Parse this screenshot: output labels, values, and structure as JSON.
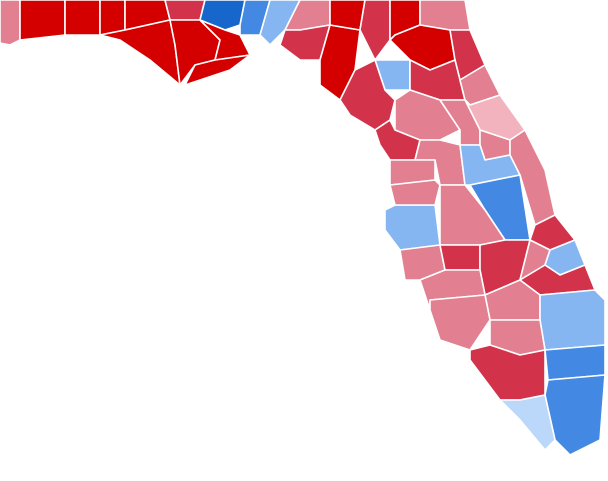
{
  "map": {
    "palette": {
      "dark_red": "#d40000",
      "medium_red": "#d2334a",
      "light_red": "#e27f90",
      "pink": "#f2b3be",
      "dark_blue": "#1666cb",
      "medium_blue": "#4389e3",
      "light_blue": "#86b6f2",
      "pale_blue": "#bbd7f9"
    },
    "counties": [
      "light_red",
      "dark_red",
      "dark_red",
      "dark_red",
      "dark_red",
      "dark_red",
      "medium_red",
      "dark_red",
      "dark_blue",
      "medium_blue",
      "light_blue",
      "dark_red",
      "dark_red",
      "light_red",
      "medium_red",
      "dark_red",
      "dark_red",
      "medium_red",
      "dark_red",
      "light_red",
      "dark_red",
      "medium_red",
      "light_blue",
      "medium_red",
      "medium_red",
      "light_red",
      "light_red",
      "pink",
      "light_red",
      "medium_red",
      "light_red",
      "light_red",
      "light_blue",
      "light_red",
      "light_red",
      "medium_blue",
      "light_blue",
      "light_red",
      "light_red",
      "medium_red",
      "light_red",
      "medium_red",
      "medium_red",
      "light_red",
      "light_blue",
      "medium_red",
      "light_red",
      "light_red",
      "light_blue",
      "light_red",
      "light_red",
      "medium_red",
      "medium_blue",
      "medium_blue",
      "pale_blue"
    ]
  }
}
